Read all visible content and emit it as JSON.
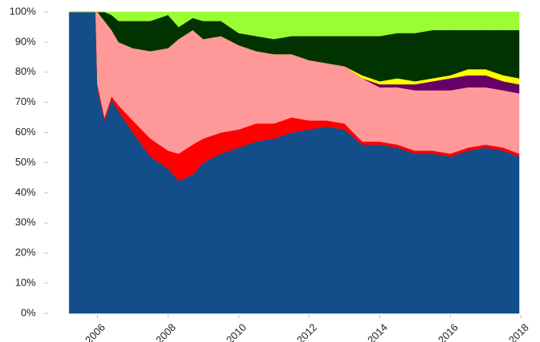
{
  "chart_data": {
    "type": "stacked-area",
    "x": [
      2005.2,
      2005.95,
      2006.0,
      2006.2,
      2006.4,
      2006.6,
      2007.0,
      2007.5,
      2008.0,
      2008.3,
      2008.7,
      2009.0,
      2009.5,
      2010.0,
      2010.5,
      2011.0,
      2011.5,
      2012.0,
      2012.5,
      2013.0,
      2013.5,
      2014.0,
      2014.5,
      2015.0,
      2015.5,
      2016.0,
      2016.5,
      2017.0,
      2017.5,
      2017.95
    ],
    "series": [
      {
        "color": "#134e8a",
        "values": [
          100,
          100,
          75,
          64,
          71,
          67,
          60,
          52,
          48,
          44,
          46,
          50,
          53,
          55,
          57,
          58,
          60,
          61,
          62,
          61,
          56,
          56,
          55,
          53,
          53,
          52,
          54,
          55,
          54,
          52
        ]
      },
      {
        "color": "#ff0000",
        "values": [
          0,
          0,
          1,
          1,
          1,
          2,
          4,
          6,
          6,
          9,
          10,
          8,
          7,
          6,
          6,
          5,
          5,
          3,
          2,
          2,
          1,
          1,
          1,
          1,
          1,
          1,
          1,
          1,
          1,
          1
        ]
      },
      {
        "color": "#ff9999",
        "values": [
          0,
          0,
          24,
          32,
          22,
          21,
          24,
          29,
          34,
          38,
          38,
          33,
          32,
          28,
          24,
          23,
          21,
          20,
          19,
          19,
          21,
          18,
          19,
          20,
          20,
          21,
          20,
          19,
          19,
          20
        ]
      },
      {
        "color": "#660066",
        "values": [
          0,
          0,
          0,
          0,
          0,
          0,
          0,
          0,
          0,
          0,
          0,
          0,
          0,
          0,
          0,
          0,
          0,
          0,
          0,
          0,
          0,
          1,
          1,
          2,
          3,
          4,
          4,
          4,
          3,
          3
        ]
      },
      {
        "color": "#ffff00",
        "values": [
          0,
          0,
          0,
          0,
          0,
          0,
          0,
          0,
          0,
          0,
          0,
          0,
          0,
          0,
          0,
          0,
          0,
          0,
          0,
          0,
          1,
          1,
          2,
          1,
          1,
          1,
          2,
          2,
          2,
          2
        ]
      },
      {
        "color": "#003300",
        "values": [
          0,
          0,
          0,
          3,
          5,
          7,
          9,
          10,
          11,
          4,
          4,
          6,
          5,
          4,
          5,
          5,
          6,
          8,
          9,
          10,
          13,
          15,
          15,
          16,
          16,
          15,
          13,
          13,
          15,
          16
        ]
      },
      {
        "color": "#99ff33",
        "values": [
          0,
          0,
          0,
          0,
          1,
          3,
          3,
          3,
          1,
          5,
          2,
          3,
          3,
          7,
          8,
          9,
          8,
          8,
          8,
          8,
          8,
          8,
          7,
          7,
          6,
          6,
          6,
          6,
          6,
          6
        ]
      }
    ],
    "xlim": [
      2005.2,
      2018
    ],
    "xticks": [
      2006,
      2008,
      2010,
      2012,
      2014,
      2016,
      2018
    ],
    "ylim": [
      0,
      100
    ],
    "yticks": [
      {
        "value": 0,
        "label": "0%"
      },
      {
        "value": 10,
        "label": "10%"
      },
      {
        "value": 20,
        "label": "20%"
      },
      {
        "value": 30,
        "label": "30%"
      },
      {
        "value": 40,
        "label": "40%"
      },
      {
        "value": 50,
        "label": "50%"
      },
      {
        "value": 60,
        "label": "60%"
      },
      {
        "value": 70,
        "label": "70%"
      },
      {
        "value": 80,
        "label": "80%"
      },
      {
        "value": 90,
        "label": "90%"
      },
      {
        "value": 100,
        "label": "100%"
      }
    ]
  }
}
